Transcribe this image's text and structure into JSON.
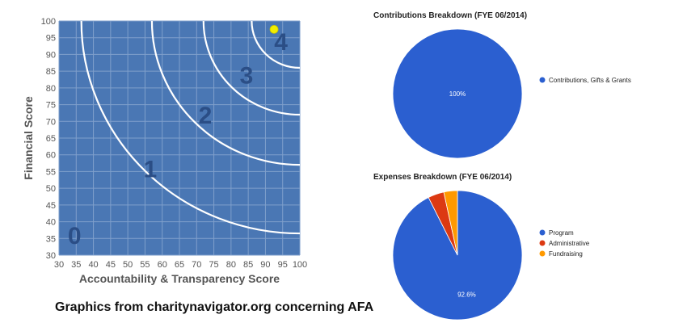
{
  "colors": {
    "plot_bg": "#4a77b4",
    "grid": "#7f9fcb",
    "arc": "#ffffff",
    "marker": "#f2ee00",
    "zone_label": "#2b4e86",
    "program": "#2b5fd0",
    "administrative": "#dc3912",
    "fundraising": "#ff9900"
  },
  "chart_data": [
    {
      "type": "scatter",
      "xlabel": "Accountability & Transparency Score",
      "ylabel": "Financial Score",
      "xlim": [
        30,
        100
      ],
      "ylim": [
        30,
        100
      ],
      "x_ticks": [
        30,
        35,
        40,
        45,
        50,
        55,
        60,
        65,
        70,
        75,
        80,
        85,
        90,
        95,
        100
      ],
      "y_ticks": [
        30,
        35,
        40,
        45,
        50,
        55,
        60,
        65,
        70,
        75,
        80,
        85,
        90,
        95,
        100
      ],
      "grid": true,
      "zone_labels": [
        {
          "text": "0",
          "x": 34.5,
          "y": 36
        },
        {
          "text": "1",
          "x": 56.5,
          "y": 56
        },
        {
          "text": "2",
          "x": 72.5,
          "y": 72
        },
        {
          "text": "3",
          "x": 84.5,
          "y": 84
        },
        {
          "text": "4",
          "x": 94.5,
          "y": 94
        }
      ],
      "arc_radii": [
        63.5,
        43,
        28,
        14
      ],
      "arc_center": [
        100,
        100
      ],
      "points": [
        {
          "x": 92.5,
          "y": 97.5
        }
      ]
    },
    {
      "type": "pie",
      "title": "Contributions Breakdown (FYE 06/2014)",
      "slices": [
        {
          "label": "Contributions, Gifts & Grants",
          "value": 100,
          "display": "100%",
          "color": "#2b5fd0"
        }
      ],
      "legend": "right"
    },
    {
      "type": "pie",
      "title": "Expenses Breakdown (FYE 06/2014)",
      "slices": [
        {
          "label": "Program",
          "value": 92.6,
          "display": "92.6%",
          "color": "#2b5fd0"
        },
        {
          "label": "Administrative",
          "value": 4.0,
          "display": "",
          "color": "#dc3912"
        },
        {
          "label": "Fundraising",
          "value": 3.4,
          "display": "",
          "color": "#ff9900"
        }
      ],
      "legend": "right"
    }
  ],
  "caption": "Graphics from charitynavigator.org concerning AFA"
}
